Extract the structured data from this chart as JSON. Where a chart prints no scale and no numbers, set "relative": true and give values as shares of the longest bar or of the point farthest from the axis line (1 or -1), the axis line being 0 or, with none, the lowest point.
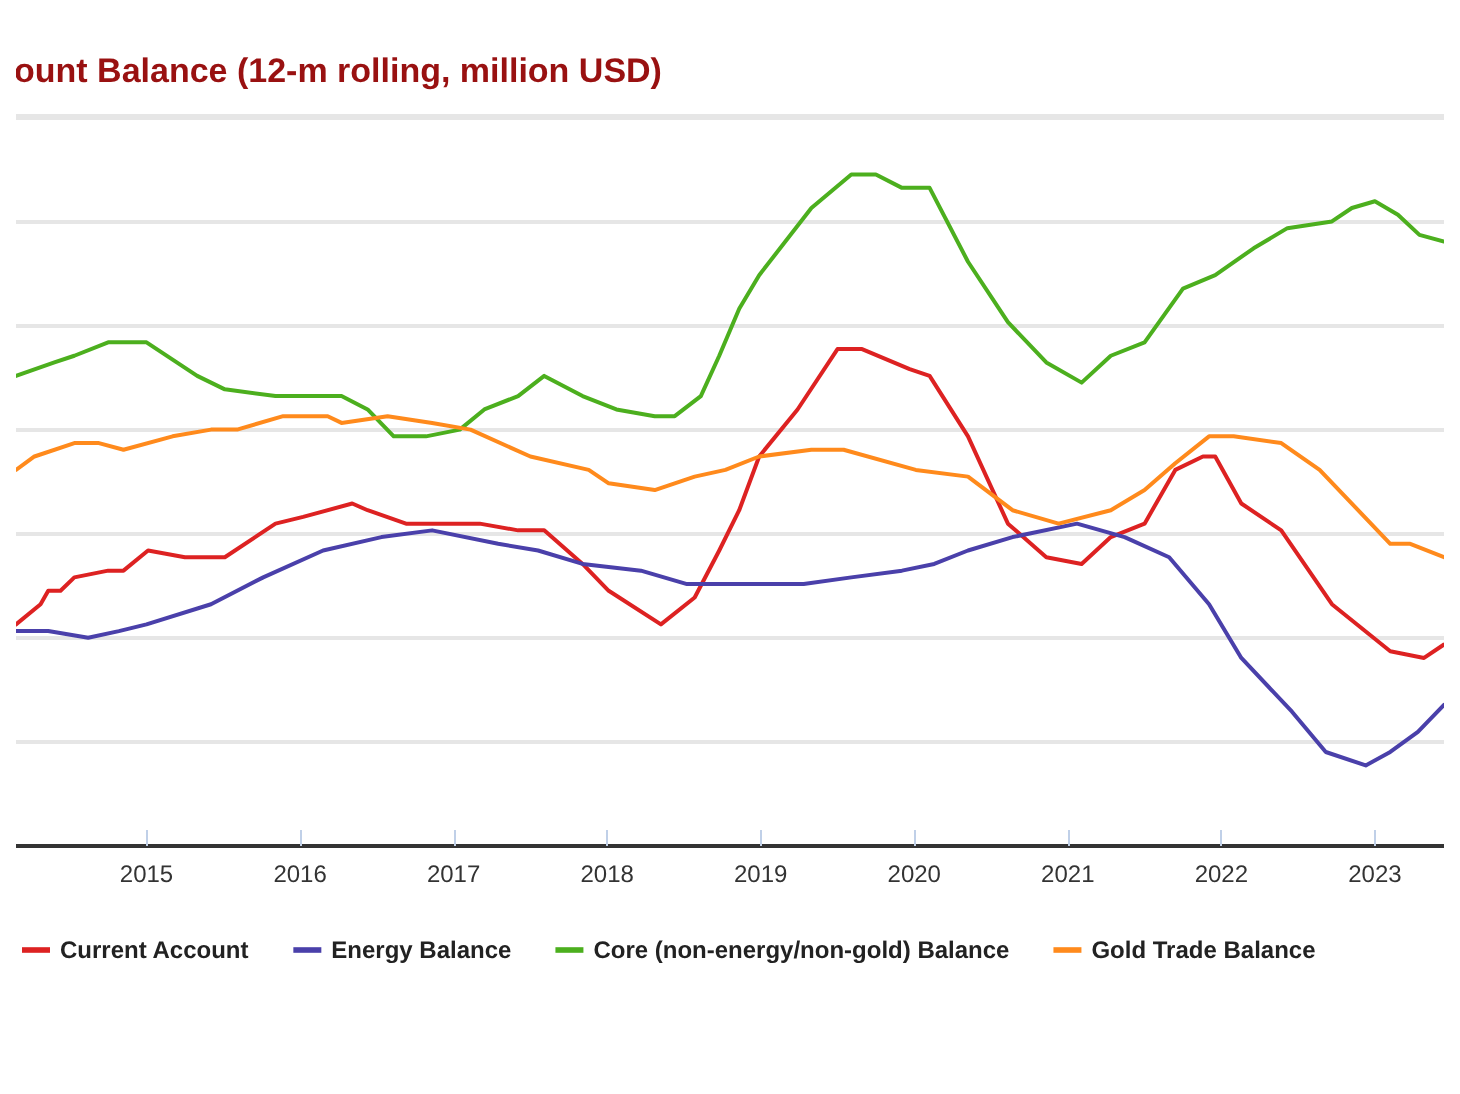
{
  "chart_data": {
    "type": "line",
    "title": "ount Balance (12-m rolling, million USD)",
    "relative": true,
    "grid": "y",
    "legend": "bottom",
    "marker": "none",
    "line_style": "solid",
    "xlim": [
      2014.15,
      2023.45
    ],
    "xticks": [
      2015,
      2016,
      2017,
      2018,
      2019,
      2020,
      2021,
      2022,
      2023
    ],
    "series": [
      {
        "name": "Current Account",
        "color": "#dd2222",
        "x": [
          2014.15,
          2014.31,
          2014.36,
          2014.44,
          2014.53,
          2014.75,
          2014.85,
          2015.01,
          2015.25,
          2015.51,
          2015.84,
          2016.02,
          2016.34,
          2016.44,
          2016.69,
          2016.91,
          2017.17,
          2017.42,
          2017.59,
          2017.84,
          2018.01,
          2018.35,
          2018.57,
          2018.73,
          2018.86,
          2018.99,
          2019.24,
          2019.5,
          2019.66,
          2019.97,
          2020.1,
          2020.35,
          2020.61,
          2020.86,
          2021.09,
          2021.28,
          2021.5,
          2021.7,
          2021.88,
          2021.96,
          2022.13,
          2022.39,
          2022.72,
          2023.1,
          2023.32,
          2023.45
        ],
        "values": [
          0.33,
          0.36,
          0.38,
          0.38,
          0.4,
          0.41,
          0.41,
          0.44,
          0.43,
          0.43,
          0.48,
          0.49,
          0.51,
          0.5,
          0.48,
          0.48,
          0.48,
          0.47,
          0.47,
          0.42,
          0.38,
          0.33,
          0.37,
          0.44,
          0.5,
          0.58,
          0.65,
          0.74,
          0.74,
          0.71,
          0.7,
          0.61,
          0.48,
          0.43,
          0.42,
          0.46,
          0.48,
          0.56,
          0.58,
          0.58,
          0.51,
          0.47,
          0.36,
          0.29,
          0.28,
          0.3
        ]
      },
      {
        "name": "Energy Balance",
        "color": "#4a40aa",
        "x": [
          2014.15,
          2014.36,
          2014.62,
          2014.82,
          2015.0,
          2015.42,
          2015.76,
          2016.15,
          2016.53,
          2016.86,
          2017.29,
          2017.55,
          2017.84,
          2018.22,
          2018.52,
          2018.73,
          2019.28,
          2019.59,
          2019.92,
          2020.13,
          2020.35,
          2020.64,
          2021.06,
          2021.37,
          2021.66,
          2021.92,
          2022.13,
          2022.46,
          2022.68,
          2022.94,
          2023.1,
          2023.28,
          2023.45
        ],
        "values": [
          0.32,
          0.32,
          0.31,
          0.32,
          0.33,
          0.36,
          0.4,
          0.44,
          0.46,
          0.47,
          0.45,
          0.44,
          0.42,
          0.41,
          0.39,
          0.39,
          0.39,
          0.4,
          0.41,
          0.42,
          0.44,
          0.46,
          0.48,
          0.46,
          0.43,
          0.36,
          0.28,
          0.2,
          0.14,
          0.12,
          0.14,
          0.17,
          0.21
        ]
      },
      {
        "name": "Core (non-energy/non-gold) Balance",
        "color": "#4caf1e",
        "x": [
          2014.15,
          2014.4,
          2014.53,
          2014.75,
          2015.0,
          2015.33,
          2015.51,
          2015.84,
          2016.06,
          2016.27,
          2016.44,
          2016.61,
          2016.82,
          2017.04,
          2017.2,
          2017.42,
          2017.59,
          2017.84,
          2018.06,
          2018.31,
          2018.44,
          2018.61,
          2018.73,
          2018.86,
          2018.99,
          2019.33,
          2019.59,
          2019.75,
          2019.92,
          2020.1,
          2020.35,
          2020.61,
          2020.86,
          2021.09,
          2021.28,
          2021.5,
          2021.75,
          2021.96,
          2022.21,
          2022.43,
          2022.72,
          2022.85,
          2023.0,
          2023.15,
          2023.29,
          2023.45
        ],
        "values": [
          0.7,
          0.72,
          0.73,
          0.75,
          0.75,
          0.7,
          0.68,
          0.67,
          0.67,
          0.67,
          0.65,
          0.61,
          0.61,
          0.62,
          0.65,
          0.67,
          0.7,
          0.67,
          0.65,
          0.64,
          0.64,
          0.67,
          0.73,
          0.8,
          0.85,
          0.95,
          1.0,
          1.0,
          0.98,
          0.98,
          0.87,
          0.78,
          0.72,
          0.69,
          0.73,
          0.75,
          0.83,
          0.85,
          0.89,
          0.92,
          0.93,
          0.95,
          0.96,
          0.94,
          0.91,
          0.9
        ]
      },
      {
        "name": "Gold Trade Balance",
        "color": "#ff8a1c",
        "x": [
          2014.15,
          2014.27,
          2014.53,
          2014.69,
          2014.85,
          2015.17,
          2015.42,
          2015.59,
          2015.89,
          2016.18,
          2016.27,
          2016.57,
          2016.86,
          2017.11,
          2017.5,
          2017.88,
          2018.01,
          2018.31,
          2018.57,
          2018.77,
          2018.99,
          2019.33,
          2019.54,
          2020.01,
          2020.35,
          2020.64,
          2020.94,
          2021.28,
          2021.5,
          2021.7,
          2021.92,
          2022.08,
          2022.39,
          2022.64,
          2023.1,
          2023.23,
          2023.45
        ],
        "values": [
          0.56,
          0.58,
          0.6,
          0.6,
          0.59,
          0.61,
          0.62,
          0.62,
          0.64,
          0.64,
          0.63,
          0.64,
          0.63,
          0.62,
          0.58,
          0.56,
          0.54,
          0.53,
          0.55,
          0.56,
          0.58,
          0.59,
          0.59,
          0.56,
          0.55,
          0.5,
          0.48,
          0.5,
          0.53,
          0.57,
          0.61,
          0.61,
          0.6,
          0.56,
          0.45,
          0.45,
          0.43
        ]
      }
    ]
  }
}
